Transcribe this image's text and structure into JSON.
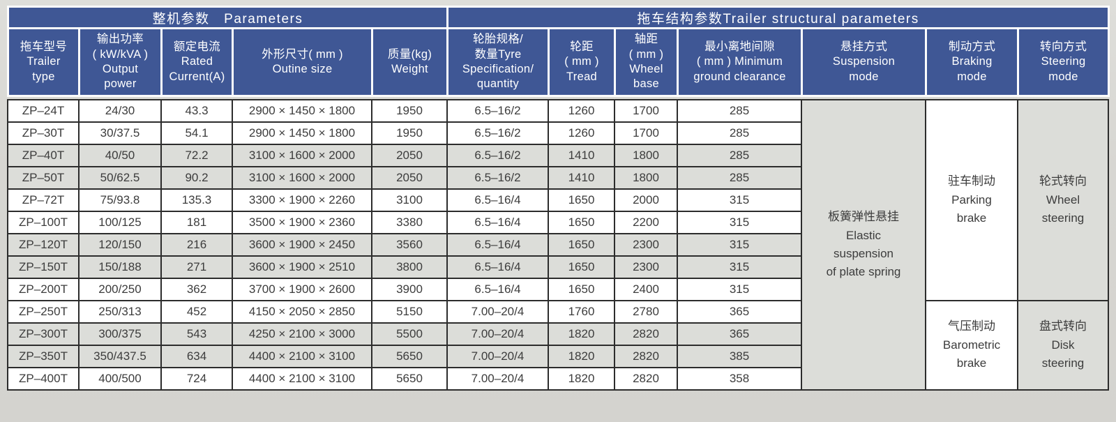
{
  "colors": {
    "header_blue": "#3f5795",
    "header_text": "#ffffff",
    "row_shaded": "#dcddd9",
    "row_plain": "#ffffff",
    "body_border": "#2c2c2c",
    "body_text": "#3c3c3c",
    "page_background": "#d9d8d4"
  },
  "sections": {
    "left": "整机参数　Parameters",
    "right": "拖车结构参数Trailer structural parameters"
  },
  "columns": [
    {
      "id": "model",
      "lines": [
        "拖车型号",
        "Trailer",
        "type"
      ]
    },
    {
      "id": "power",
      "lines": [
        "输出功率",
        "( kW/kVA )",
        "Output",
        "power"
      ]
    },
    {
      "id": "current",
      "lines": [
        "额定电流",
        "Rated",
        "Current(A)"
      ]
    },
    {
      "id": "size",
      "lines": [
        "外形尺寸( mm )",
        "Outine size"
      ]
    },
    {
      "id": "weight",
      "lines": [
        "质量(kg)",
        "Weight"
      ]
    },
    {
      "id": "tyre",
      "lines": [
        "轮胎规格/",
        "数量Tyre",
        "Specification/",
        "quantity"
      ]
    },
    {
      "id": "tread",
      "lines": [
        "轮距",
        "( mm )",
        "Tread"
      ]
    },
    {
      "id": "wheelbase",
      "lines": [
        "轴距",
        "( mm )",
        "Wheel",
        "base"
      ]
    },
    {
      "id": "clearance",
      "lines": [
        "最小离地间隙",
        "( mm ) Minimum",
        "ground clearance"
      ]
    },
    {
      "id": "suspension",
      "lines": [
        "悬挂方式",
        "Suspension",
        "mode"
      ]
    },
    {
      "id": "braking",
      "lines": [
        "制动方式",
        "Braking",
        "mode"
      ]
    },
    {
      "id": "steering",
      "lines": [
        "转向方式",
        "Steering",
        "mode"
      ]
    }
  ],
  "rows": [
    {
      "model": "ZP–24T",
      "power": "24/30",
      "current": "43.3",
      "size": "2900 × 1450 × 1800",
      "weight": "1950",
      "tyre": "6.5–16/2",
      "tread": "1260",
      "wheelbase": "1700",
      "clearance": "285",
      "shade": false
    },
    {
      "model": "ZP–30T",
      "power": "30/37.5",
      "current": "54.1",
      "size": "2900 × 1450 × 1800",
      "weight": "1950",
      "tyre": "6.5–16/2",
      "tread": "1260",
      "wheelbase": "1700",
      "clearance": "285",
      "shade": false
    },
    {
      "model": "ZP–40T",
      "power": "40/50",
      "current": "72.2",
      "size": "3100 × 1600 × 2000",
      "weight": "2050",
      "tyre": "6.5–16/2",
      "tread": "1410",
      "wheelbase": "1800",
      "clearance": "285",
      "shade": true
    },
    {
      "model": "ZP–50T",
      "power": "50/62.5",
      "current": "90.2",
      "size": "3100 × 1600 × 2000",
      "weight": "2050",
      "tyre": "6.5–16/2",
      "tread": "1410",
      "wheelbase": "1800",
      "clearance": "285",
      "shade": true
    },
    {
      "model": "ZP–72T",
      "power": "75/93.8",
      "current": "135.3",
      "size": "3300 × 1900 × 2260",
      "weight": "3100",
      "tyre": "6.5–16/4",
      "tread": "1650",
      "wheelbase": "2000",
      "clearance": "315",
      "shade": false
    },
    {
      "model": "ZP–100T",
      "power": "100/125",
      "current": "181",
      "size": "3500 × 1900 × 2360",
      "weight": "3380",
      "tyre": "6.5–16/4",
      "tread": "1650",
      "wheelbase": "2200",
      "clearance": "315",
      "shade": false
    },
    {
      "model": "ZP–120T",
      "power": "120/150",
      "current": "216",
      "size": "3600 × 1900 × 2450",
      "weight": "3560",
      "tyre": "6.5–16/4",
      "tread": "1650",
      "wheelbase": "2300",
      "clearance": "315",
      "shade": true
    },
    {
      "model": "ZP–150T",
      "power": "150/188",
      "current": "271",
      "size": "3600 × 1900 × 2510",
      "weight": "3800",
      "tyre": "6.5–16/4",
      "tread": "1650",
      "wheelbase": "2300",
      "clearance": "315",
      "shade": true
    },
    {
      "model": "ZP–200T",
      "power": "200/250",
      "current": "362",
      "size": "3700 × 1900 × 2600",
      "weight": "3900",
      "tyre": "6.5–16/4",
      "tread": "1650",
      "wheelbase": "2400",
      "clearance": "315",
      "shade": false
    },
    {
      "model": "ZP–250T",
      "power": "250/313",
      "current": "452",
      "size": "4150 × 2050 × 2850",
      "weight": "5150",
      "tyre": "7.00–20/4",
      "tread": "1760",
      "wheelbase": "2780",
      "clearance": "365",
      "shade": false
    },
    {
      "model": "ZP–300T",
      "power": "300/375",
      "current": "543",
      "size": "4250 × 2100 × 3000",
      "weight": "5500",
      "tyre": "7.00–20/4",
      "tread": "1820",
      "wheelbase": "2820",
      "clearance": "365",
      "shade": true
    },
    {
      "model": "ZP–350T",
      "power": "350/437.5",
      "current": "634",
      "size": "4400 × 2100 × 3100",
      "weight": "5650",
      "tyre": "7.00–20/4",
      "tread": "1820",
      "wheelbase": "2820",
      "clearance": "385",
      "shade": true
    },
    {
      "model": "ZP–400T",
      "power": "400/500",
      "current": "724",
      "size": "4400 × 2100 × 3100",
      "weight": "5650",
      "tyre": "7.00–20/4",
      "tread": "1820",
      "wheelbase": "2820",
      "clearance": "358",
      "shade": false
    }
  ],
  "merged": {
    "suspension": {
      "lines": [
        "板簧弹性悬挂",
        "Elastic",
        "suspension",
        "of plate spring"
      ],
      "start": 0,
      "span": 13,
      "shaded": true
    },
    "braking": [
      {
        "lines": [
          "驻车制动",
          "Parking",
          "brake"
        ],
        "start": 0,
        "span": 9,
        "shaded": false
      },
      {
        "lines": [
          "气压制动",
          "Barometric",
          "brake"
        ],
        "start": 9,
        "span": 4,
        "shaded": false
      }
    ],
    "steering": [
      {
        "lines": [
          "轮式转向",
          "Wheel",
          "steering"
        ],
        "start": 0,
        "span": 9,
        "shaded": true
      },
      {
        "lines": [
          "盘式转向",
          "Disk",
          "steering"
        ],
        "start": 9,
        "span": 4,
        "shaded": true
      }
    ]
  }
}
